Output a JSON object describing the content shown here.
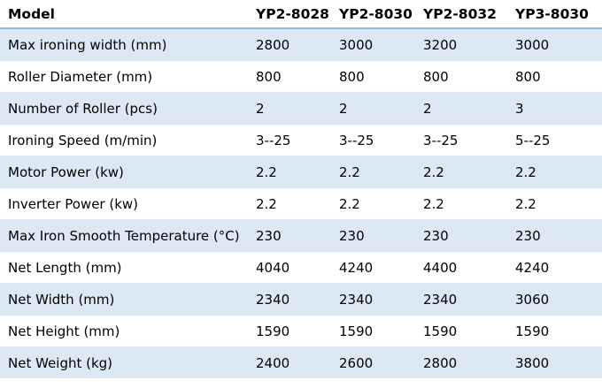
{
  "table": {
    "headers": [
      "Model",
      "YP2-8028",
      "YP2-8030",
      "YP2-8032",
      "YP3-8030"
    ],
    "rows": [
      [
        "Max ironing width (mm)",
        "2800",
        "3000",
        "3200",
        "3000"
      ],
      [
        "Roller Diameter (mm)",
        "800",
        "800",
        "800",
        "800"
      ],
      [
        "Number of Roller (pcs)",
        "2",
        "2",
        "2",
        "3"
      ],
      [
        "Ironing Speed (m/min)",
        "3--25",
        "3--25",
        "3--25",
        "5--25"
      ],
      [
        "Motor Power (kw)",
        "2.2",
        "2.2",
        "2.2",
        "2.2"
      ],
      [
        "Inverter Power (kw)",
        "2.2",
        "2.2",
        "2.2",
        "2.2"
      ],
      [
        "Max Iron Smooth Temperature (°C)",
        "230",
        "230",
        "230",
        "230"
      ],
      [
        "Net Length (mm)",
        "4040",
        "4240",
        "4400",
        "4240"
      ],
      [
        "Net Width (mm)",
        "2340",
        "2340",
        "2340",
        "3060"
      ],
      [
        "Net Height (mm)",
        "1590",
        "1590",
        "1590",
        "1590"
      ],
      [
        "Net Weight (kg)",
        "2400",
        "2600",
        "2800",
        "3800"
      ]
    ]
  },
  "colors": {
    "stripe": "#dce9f4",
    "header_rule": "#8fb7d6",
    "background": "#ffffff"
  }
}
